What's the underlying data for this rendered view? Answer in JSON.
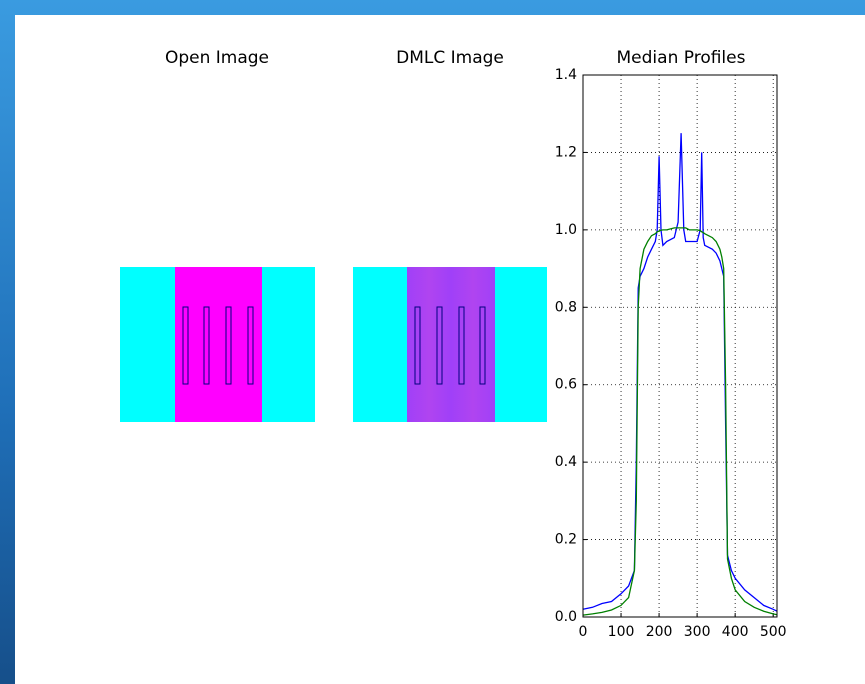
{
  "chart_data": [
    {
      "type": "image",
      "title": "Open Image"
    },
    {
      "type": "image",
      "title": "DMLC Image"
    },
    {
      "type": "line",
      "title": "Median Profiles",
      "x": [
        0,
        25,
        50,
        75,
        100,
        120,
        135,
        140,
        145,
        150,
        160,
        170,
        180,
        190,
        195,
        200,
        205,
        210,
        220,
        240,
        250,
        258,
        265,
        270,
        280,
        300,
        308,
        312,
        316,
        320,
        340,
        350,
        360,
        365,
        370,
        375,
        380,
        390,
        400,
        425,
        450,
        475,
        500,
        510
      ],
      "series": [
        {
          "color": "#0000ff",
          "values": [
            0.02,
            0.025,
            0.035,
            0.04,
            0.06,
            0.08,
            0.12,
            0.4,
            0.85,
            0.88,
            0.9,
            0.93,
            0.95,
            0.97,
            1.0,
            1.19,
            1.0,
            0.96,
            0.97,
            0.98,
            1.02,
            1.25,
            1.0,
            0.97,
            0.97,
            0.97,
            1.0,
            1.2,
            0.98,
            0.96,
            0.95,
            0.94,
            0.92,
            0.9,
            0.88,
            0.5,
            0.16,
            0.12,
            0.1,
            0.07,
            0.05,
            0.03,
            0.02,
            0.015
          ]
        },
        {
          "color": "#008000",
          "values": [
            0.005,
            0.008,
            0.012,
            0.018,
            0.03,
            0.05,
            0.12,
            0.3,
            0.8,
            0.9,
            0.95,
            0.97,
            0.985,
            0.99,
            0.995,
            0.997,
            0.999,
            1.0,
            1.0,
            1.005,
            1.005,
            1.005,
            1.005,
            1.005,
            1.0,
            1.0,
            0.998,
            0.995,
            0.993,
            0.99,
            0.98,
            0.97,
            0.95,
            0.93,
            0.9,
            0.6,
            0.15,
            0.1,
            0.07,
            0.04,
            0.025,
            0.015,
            0.008,
            0.006
          ]
        }
      ],
      "xlim": [
        0,
        510
      ],
      "ylim": [
        0,
        1.4
      ],
      "xticks": [
        0,
        100,
        200,
        300,
        400,
        500
      ],
      "yticks": [
        {
          "value": 0,
          "label": "0.0"
        },
        0.2,
        0.4,
        0.6,
        0.8,
        {
          "value": 1,
          "label": "1.0"
        },
        1.2,
        1.4
      ],
      "grid": true
    }
  ]
}
